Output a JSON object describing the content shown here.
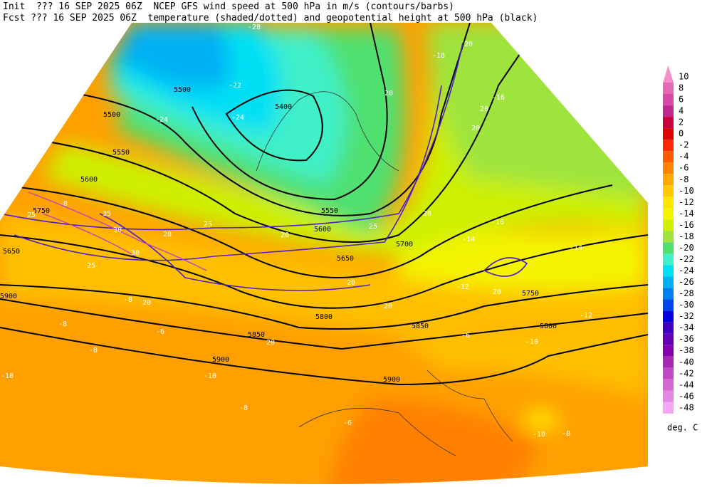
{
  "header": {
    "line1": "Init  ??? 16 SEP 2025 06Z  NCEP GFS wind speed at 500 hPa in m/s (contours/barbs)",
    "line2": "Fcst ??? 16 SEP 2025 06Z  temperature (shaded/dotted) and geopotential height at 500 hPa (black)"
  },
  "colorbar": {
    "levels": [
      10,
      8,
      6,
      4,
      2,
      0,
      -2,
      -4,
      -6,
      -8,
      -10,
      -12,
      -14,
      -16,
      -18,
      -20,
      -22,
      -24,
      -26,
      -28,
      -30,
      -32,
      -34,
      -36,
      -38,
      -40,
      -42,
      -44,
      -46,
      -48
    ],
    "colors": [
      "#f590c8",
      "#e868b8",
      "#d848a8",
      "#c02890",
      "#c80040",
      "#e00000",
      "#ff2800",
      "#ff5a00",
      "#ff8200",
      "#ffa800",
      "#ffc800",
      "#ffe400",
      "#f4f400",
      "#cdf000",
      "#9ee43c",
      "#50e070",
      "#40f0c8",
      "#00e0f4",
      "#00b0f4",
      "#0080f0",
      "#0044f0",
      "#0000e0",
      "#4000c0",
      "#6400b4",
      "#8800b0",
      "#a828b4",
      "#c048c4",
      "#d468d4",
      "#e488e4",
      "#f4a8f4"
    ],
    "unit": "deg. C"
  },
  "map": {
    "height_labels": [
      5400,
      5500,
      5500,
      5550,
      5600,
      5750,
      5650,
      5900,
      5900,
      5900,
      5850,
      5800,
      5750,
      5700,
      5650,
      5600,
      5550,
      5850,
      5800
    ],
    "temperature_labels": [
      -28,
      -22,
      -24,
      -24,
      -18,
      -16,
      -14,
      -16,
      -14,
      -12,
      -12,
      -10,
      -10,
      -10,
      -8,
      -8,
      -8,
      -6,
      -6,
      -8,
      -8,
      -6,
      -10,
      -8
    ],
    "wind_labels": [
      20,
      20,
      20,
      20,
      20,
      25,
      20,
      25,
      20,
      30,
      35,
      30,
      25,
      20,
      20,
      20,
      20,
      20,
      25
    ]
  }
}
